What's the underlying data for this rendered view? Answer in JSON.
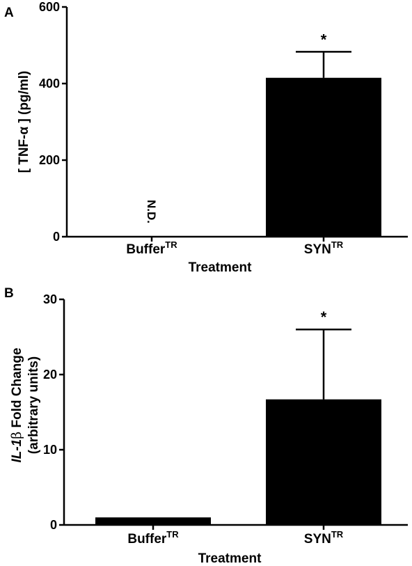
{
  "chart_data": [
    {
      "type": "bar",
      "panel": "A",
      "categories": [
        {
          "base": "Buffer",
          "sup": "TR"
        },
        {
          "base": "SYN",
          "sup": "TR"
        }
      ],
      "values": [
        null,
        415
      ],
      "error": [
        null,
        68
      ],
      "value_labels": [
        "N.D.",
        null
      ],
      "significance": [
        null,
        "*"
      ],
      "xlabel": "Treatment",
      "ylabel": "[ TNF-α ] (pg/ml)",
      "ylim": [
        0,
        600
      ],
      "yticks": [
        0,
        200,
        400,
        600
      ],
      "grid": false,
      "bar_color": "#000000"
    },
    {
      "type": "bar",
      "panel": "B",
      "categories": [
        {
          "base": "Buffer",
          "sup": "TR"
        },
        {
          "base": "SYN",
          "sup": "TR"
        }
      ],
      "values": [
        1.0,
        16.7
      ],
      "error": [
        0,
        9.3
      ],
      "value_labels": [
        null,
        null
      ],
      "significance": [
        null,
        "*"
      ],
      "xlabel": "Treatment",
      "ylabel": {
        "line1_italic": "IL-1",
        "line1_greek": "β",
        "line1_rest": " Fold Change",
        "line2": "(arbitrary units)"
      },
      "ylim": [
        0,
        30
      ],
      "yticks": [
        0,
        10,
        20,
        30
      ],
      "grid": false,
      "bar_color": "#000000"
    }
  ]
}
